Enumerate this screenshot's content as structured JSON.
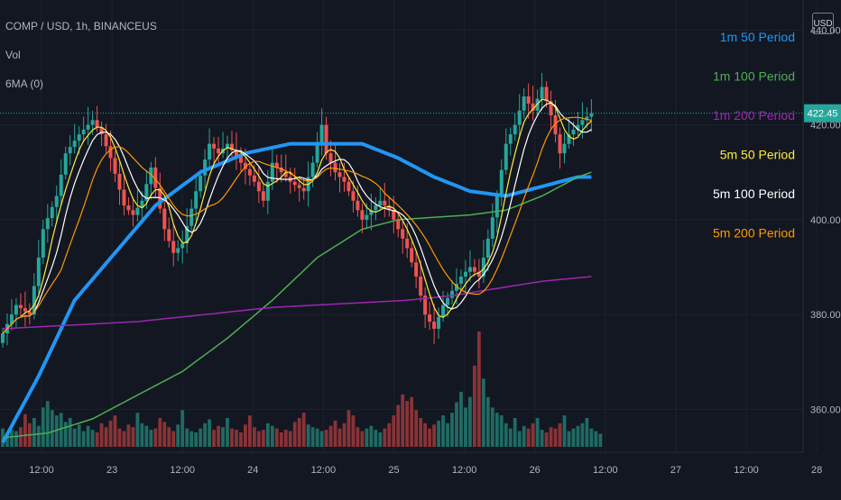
{
  "header": {
    "title": "COMP / USD, 1h, BINANCEUS",
    "volume": "Vol",
    "indicator": "6MA (0)"
  },
  "currency_button": "USD",
  "chart_data": {
    "type": "candlestick",
    "symbol": "COMP / USD",
    "interval": "1h",
    "exchange": "BINANCEUS",
    "colors": {
      "background": "#131722",
      "up": "#26a69a",
      "down": "#ef5350",
      "grid": "#1e222d",
      "axis_text": "#b2b5be",
      "last_price_bg": "#26a69a"
    },
    "ylim": [
      350,
      445
    ],
    "y_ticks": [
      {
        "value": 360,
        "label": "360.00"
      },
      {
        "value": 380,
        "label": "380.00"
      },
      {
        "value": 400,
        "label": "400.00"
      },
      {
        "value": 420,
        "label": "420.00"
      },
      {
        "value": 440,
        "label": "440.00"
      }
    ],
    "x_ticks": [
      "12:00",
      "23",
      "12:00",
      "24",
      "12:00",
      "25",
      "12:00",
      "26",
      "12:00",
      "27",
      "12:00",
      "28"
    ],
    "last_price": {
      "value": 422.45,
      "label": "422.45"
    },
    "legend": [
      {
        "name": "1m 50 Period",
        "color": "#2196f3"
      },
      {
        "name": "1m 100 Period",
        "color": "#4caf50"
      },
      {
        "name": "1m 200 Period",
        "color": "#9c27b0"
      },
      {
        "name": "5m 50 Period",
        "color": "#ffeb3b"
      },
      {
        "name": "5m 100 Period",
        "color": "#ffffff"
      },
      {
        "name": "5m 200 Period",
        "color": "#ff9800"
      }
    ],
    "close_anchors": [
      [
        0,
        376
      ],
      [
        3,
        382
      ],
      [
        6,
        380
      ],
      [
        9,
        398
      ],
      [
        12,
        405
      ],
      [
        14,
        414
      ],
      [
        17,
        418
      ],
      [
        20,
        421
      ],
      [
        22,
        418
      ],
      [
        24,
        413
      ],
      [
        27,
        403
      ],
      [
        29,
        401
      ],
      [
        31,
        404
      ],
      [
        33,
        411
      ],
      [
        36,
        398
      ],
      [
        38,
        393
      ],
      [
        40,
        395
      ],
      [
        43,
        406
      ],
      [
        46,
        416
      ],
      [
        48,
        414
      ],
      [
        50,
        416
      ],
      [
        53,
        412
      ],
      [
        56,
        408
      ],
      [
        58,
        404
      ],
      [
        60,
        412
      ],
      [
        62,
        410
      ],
      [
        64,
        408
      ],
      [
        67,
        406
      ],
      [
        69,
        412
      ],
      [
        71,
        420
      ],
      [
        72,
        414
      ],
      [
        74,
        410
      ],
      [
        76,
        408
      ],
      [
        78,
        404
      ],
      [
        80,
        400
      ],
      [
        82,
        402
      ],
      [
        84,
        404
      ],
      [
        86,
        402
      ],
      [
        88,
        398
      ],
      [
        90,
        394
      ],
      [
        92,
        388
      ],
      [
        94,
        380
      ],
      [
        96,
        377
      ],
      [
        98,
        382
      ],
      [
        100,
        385
      ],
      [
        102,
        388
      ],
      [
        104,
        390
      ],
      [
        106,
        388
      ],
      [
        108,
        396
      ],
      [
        110,
        405
      ],
      [
        112,
        416
      ],
      [
        114,
        420
      ],
      [
        116,
        426
      ],
      [
        118,
        423
      ],
      [
        120,
        428
      ],
      [
        122,
        422
      ],
      [
        124,
        414
      ],
      [
        126,
        418
      ],
      [
        129,
        421
      ],
      [
        131,
        422.45
      ]
    ],
    "volume_series": [
      14,
      11,
      13,
      12,
      15,
      25,
      18,
      22,
      16,
      30,
      35,
      28,
      24,
      26,
      19,
      22,
      14,
      17,
      12,
      16,
      13,
      11,
      18,
      15,
      20,
      24,
      14,
      12,
      17,
      15,
      26,
      18,
      16,
      13,
      14,
      22,
      19,
      15,
      12,
      17,
      28,
      14,
      12,
      11,
      14,
      18,
      21,
      13,
      16,
      15,
      22,
      14,
      13,
      11,
      17,
      24,
      15,
      12,
      13,
      18,
      16,
      14,
      11,
      13,
      12,
      19,
      22,
      26,
      17,
      15,
      14,
      12,
      13,
      16,
      20,
      14,
      18,
      28,
      24,
      15,
      12,
      14,
      16,
      13,
      11,
      14,
      18,
      24,
      32,
      40,
      35,
      38,
      28,
      22,
      18,
      14,
      17,
      20,
      24,
      18,
      26,
      34,
      42,
      30,
      38,
      62,
      88,
      52,
      38,
      30,
      26,
      24,
      18,
      14,
      22,
      12,
      16,
      14,
      18,
      22,
      13,
      11,
      15,
      14,
      18,
      24,
      12,
      14,
      16,
      18,
      22,
      14,
      12,
      10
    ],
    "moving_averages": [
      {
        "name": "1m 50 Period",
        "color": "#2196f3",
        "width": 4,
        "points": [
          [
            0,
            353
          ],
          [
            8,
            367
          ],
          [
            16,
            383
          ],
          [
            25,
            393
          ],
          [
            34,
            403
          ],
          [
            44,
            410
          ],
          [
            54,
            414
          ],
          [
            64,
            416
          ],
          [
            74,
            416
          ],
          [
            80,
            416
          ],
          [
            88,
            413
          ],
          [
            96,
            409
          ],
          [
            104,
            406
          ],
          [
            112,
            405
          ],
          [
            120,
            407
          ],
          [
            128,
            409
          ],
          [
            131,
            409
          ]
        ]
      },
      {
        "name": "1m 100 Period",
        "color": "#4caf50",
        "width": 1.5,
        "points": [
          [
            0,
            354
          ],
          [
            10,
            355
          ],
          [
            20,
            358
          ],
          [
            30,
            363
          ],
          [
            40,
            368
          ],
          [
            50,
            375
          ],
          [
            60,
            383
          ],
          [
            70,
            392
          ],
          [
            80,
            398
          ],
          [
            88,
            400
          ],
          [
            96,
            400.5
          ],
          [
            104,
            401
          ],
          [
            112,
            402
          ],
          [
            120,
            405
          ],
          [
            128,
            409
          ],
          [
            131,
            410
          ]
        ]
      },
      {
        "name": "1m 200 Period",
        "color": "#9c27b0",
        "width": 1.5,
        "points": [
          [
            0,
            377
          ],
          [
            10,
            377.5
          ],
          [
            20,
            378
          ],
          [
            30,
            378.5
          ],
          [
            40,
            379.5
          ],
          [
            50,
            380.5
          ],
          [
            60,
            381.5
          ],
          [
            70,
            382
          ],
          [
            80,
            382.5
          ],
          [
            90,
            383
          ],
          [
            100,
            384
          ],
          [
            110,
            385.5
          ],
          [
            120,
            387
          ],
          [
            131,
            388
          ]
        ]
      }
    ],
    "fast_mas": [
      {
        "name": "5m 50 Period",
        "color": "#ffeb3b",
        "period": 5
      },
      {
        "name": "5m 100 Period",
        "color": "#ffffff",
        "period": 8
      },
      {
        "name": "5m 200 Period",
        "color": "#ff9800",
        "period": 14
      }
    ]
  }
}
